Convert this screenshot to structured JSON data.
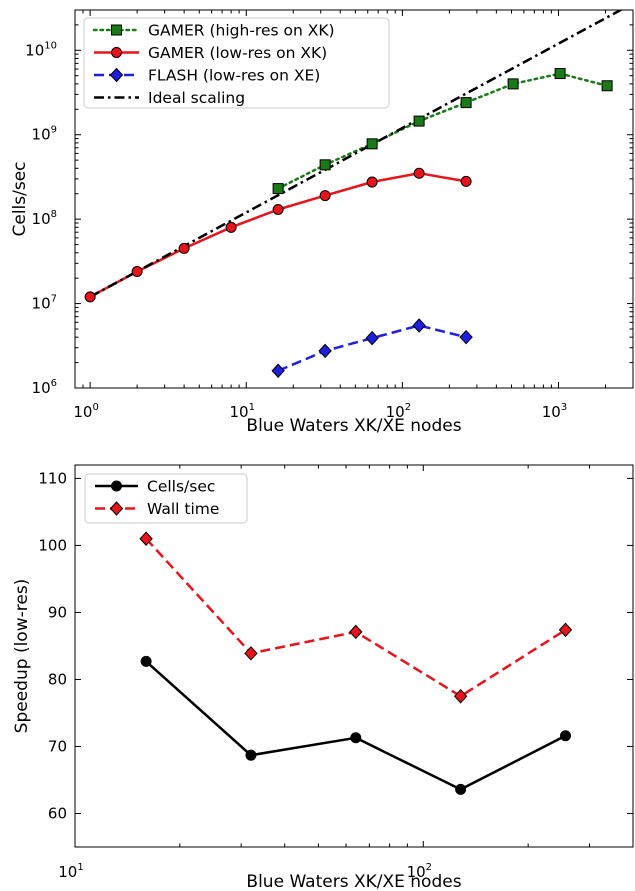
{
  "chart_data": [
    {
      "type": "line",
      "xlabel": "Blue Waters XK/XE nodes",
      "ylabel": "Cells/sec",
      "xscale": "log",
      "yscale": "log",
      "xlim": [
        0.8,
        3000
      ],
      "ylim": [
        1000000,
        30000000000
      ],
      "x_ticks": [
        {
          "value": 1,
          "base": "10",
          "exp": "0"
        },
        {
          "value": 10,
          "base": "10",
          "exp": "1"
        },
        {
          "value": 100,
          "base": "10",
          "exp": "2"
        },
        {
          "value": 1000,
          "base": "10",
          "exp": "3"
        }
      ],
      "y_ticks": [
        {
          "value": 1000000,
          "base": "10",
          "exp": "6"
        },
        {
          "value": 10000000,
          "base": "10",
          "exp": "7"
        },
        {
          "value": 100000000,
          "base": "10",
          "exp": "8"
        },
        {
          "value": 1000000000,
          "base": "10",
          "exp": "9"
        },
        {
          "value": 10000000000,
          "base": "10",
          "exp": "10"
        }
      ],
      "legend_position": "upper-left",
      "grid": false,
      "series": [
        {
          "name": "GAMER (high-res on XK)",
          "color": "#1a7a1a",
          "line_style": "dotted",
          "marker": "square",
          "marker_color": "#1a7a1a",
          "x": [
            16,
            32,
            64,
            128,
            256,
            512,
            1024,
            2048
          ],
          "y": [
            230000000,
            440000000,
            780000000,
            1450000000,
            2400000000,
            4000000000,
            5300000000,
            3800000000
          ]
        },
        {
          "name": "GAMER (low-res on XK)",
          "color": "#e8141b",
          "line_style": "solid",
          "marker": "circle",
          "marker_color": "#e8141b",
          "x": [
            1,
            2,
            4,
            8,
            16,
            32,
            64,
            128,
            256
          ],
          "y": [
            12000000,
            24000000,
            45000000,
            80000000,
            130000000,
            190000000,
            275000000,
            350000000,
            280000000
          ]
        },
        {
          "name": "FLASH (low-res on XE)",
          "color": "#1f1fe0",
          "line_style": "dashed",
          "marker": "diamond",
          "marker_color": "#1f1fe0",
          "x": [
            16,
            32,
            64,
            128,
            256
          ],
          "y": [
            1600000,
            2750000,
            3900000,
            5500000,
            4000000
          ]
        },
        {
          "name": "Ideal scaling",
          "color": "#000000",
          "line_style": "dashdot",
          "marker": "none",
          "x": [
            1,
            3000
          ],
          "y": [
            12000000,
            36000000000
          ]
        }
      ]
    },
    {
      "type": "line",
      "xlabel": "Blue Waters XK/XE nodes",
      "ylabel": "Speedup (low-res)",
      "xscale": "log",
      "yscale": "linear",
      "xlim": [
        10,
        400
      ],
      "ylim": [
        55,
        112
      ],
      "x_ticks": [
        {
          "value": 10,
          "base": "10",
          "exp": "1"
        },
        {
          "value": 100,
          "base": "10",
          "exp": "2"
        }
      ],
      "y_ticks": [
        {
          "value": 60,
          "label": "60"
        },
        {
          "value": 70,
          "label": "70"
        },
        {
          "value": 80,
          "label": "80"
        },
        {
          "value": 90,
          "label": "90"
        },
        {
          "value": 100,
          "label": "100"
        },
        {
          "value": 110,
          "label": "110"
        }
      ],
      "legend_position": "upper-left",
      "grid": false,
      "series": [
        {
          "name": "Cells/sec",
          "color": "#000000",
          "line_style": "solid",
          "marker": "circle",
          "marker_color": "#000000",
          "x": [
            16,
            32,
            64,
            128,
            256
          ],
          "y": [
            82.7,
            68.7,
            71.3,
            63.6,
            71.6
          ]
        },
        {
          "name": "Wall time",
          "color": "#e8141b",
          "line_style": "dashed",
          "marker": "diamond",
          "marker_color": "#e8141b",
          "x": [
            16,
            32,
            64,
            128,
            256
          ],
          "y": [
            101.0,
            83.9,
            87.1,
            77.5,
            87.4
          ]
        }
      ]
    }
  ]
}
